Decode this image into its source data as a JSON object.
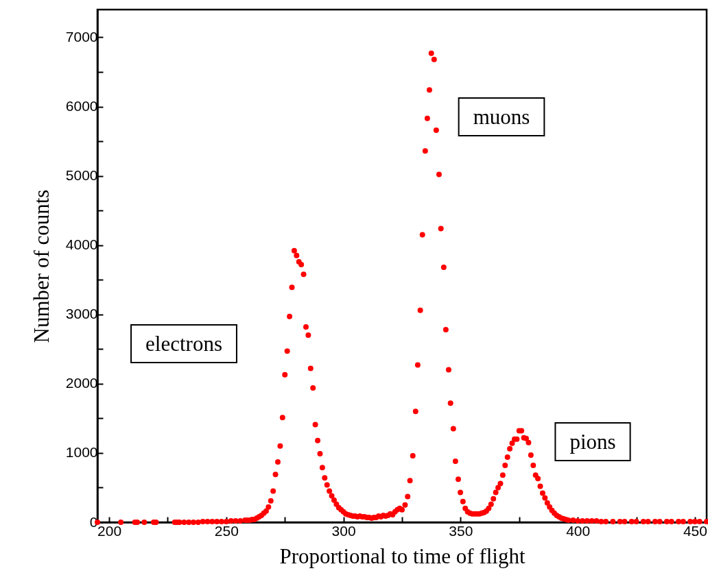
{
  "chart_data": {
    "type": "scatter",
    "xlabel": "Proportional to time of flight",
    "ylabel": "Number of counts",
    "xlim": [
      195,
      455
    ],
    "xticks": [
      200,
      {
        "value": 225,
        "label": null
      },
      250,
      {
        "value": 275,
        "label": null
      },
      300,
      {
        "value": 325,
        "label": null
      },
      350,
      {
        "value": 375,
        "label": null
      },
      400,
      {
        "value": 425,
        "label": null
      },
      450
    ],
    "ylim": [
      0,
      7400
    ],
    "yticks": [
      0,
      {
        "value": 500,
        "label": null
      },
      1000,
      {
        "value": 1500,
        "label": null
      },
      2000,
      {
        "value": 2500,
        "label": null
      },
      3000,
      {
        "value": 3500,
        "label": null
      },
      4000,
      {
        "value": 4500,
        "label": null
      },
      5000,
      {
        "value": 5500,
        "label": null
      },
      6000,
      {
        "value": 6500,
        "label": null
      },
      7000
    ],
    "grid": false,
    "marker": "circle",
    "annotations": [
      "electrons",
      "muons",
      "pions"
    ],
    "series": [
      {
        "color": "#ff0000",
        "x": [
          195,
          205,
          211,
          212,
          215,
          219,
          220,
          228,
          229,
          230,
          232,
          234,
          236,
          238,
          240,
          242,
          244,
          246,
          248,
          250,
          252,
          254,
          256,
          258,
          259,
          260,
          261,
          262,
          263,
          264,
          265,
          266,
          267,
          268,
          269,
          270,
          271,
          272,
          273,
          274,
          275,
          276,
          277,
          278,
          279,
          280,
          281,
          282,
          283,
          284,
          285,
          286,
          287,
          288,
          289,
          290,
          291,
          292,
          293,
          294,
          295,
          296,
          297,
          298,
          299,
          300,
          301,
          302,
          303,
          304,
          305,
          306,
          307,
          308,
          309,
          310,
          311,
          312,
          313,
          314,
          315,
          316,
          317,
          318,
          319,
          320,
          321,
          322,
          323,
          324,
          325,
          326.3,
          327.4,
          328.4,
          329.6,
          330.8,
          331.7,
          332.8,
          333.7,
          334.9,
          335.8,
          336.7,
          337.5,
          338.7,
          339.6,
          340.8,
          341.6,
          342.8,
          343.7,
          344.9,
          345.7,
          346.9,
          347.8,
          349,
          349.9,
          351,
          352,
          353,
          354,
          355,
          356,
          357,
          358,
          359,
          360,
          361,
          362,
          363,
          364,
          365,
          366,
          367,
          368,
          369,
          370,
          371,
          372,
          373,
          374,
          375,
          376,
          377,
          378,
          379,
          380,
          381,
          382,
          383,
          384,
          385,
          386,
          387,
          388,
          389,
          390,
          391,
          392,
          393,
          394,
          395,
          396,
          398,
          400,
          402,
          404,
          406,
          408,
          410,
          412,
          415,
          418,
          420,
          423,
          425,
          428,
          430,
          433,
          435,
          438,
          440,
          443,
          445,
          448,
          450,
          452,
          455
        ],
        "values": [
          0,
          0,
          0,
          0,
          0,
          0,
          0,
          0,
          0,
          0,
          0,
          0,
          0,
          0,
          10,
          10,
          10,
          10,
          10,
          10,
          20,
          20,
          20,
          30,
          30,
          30,
          40,
          40,
          60,
          80,
          100,
          130,
          160,
          220,
          310,
          450,
          690,
          870,
          1100,
          1510,
          2130,
          2470,
          2970,
          3390,
          3920,
          3850,
          3760,
          3720,
          3580,
          2820,
          2700,
          2220,
          1940,
          1410,
          1180,
          990,
          790,
          640,
          540,
          450,
          380,
          320,
          260,
          210,
          180,
          150,
          120,
          110,
          100,
          90,
          90,
          80,
          90,
          80,
          80,
          70,
          70,
          60,
          70,
          70,
          90,
          80,
          100,
          90,
          100,
          120,
          110,
          150,
          180,
          200,
          180,
          250,
          370,
          600,
          960,
          1600,
          2270,
          3060,
          4150,
          5360,
          5830,
          6240,
          6770,
          6680,
          5660,
          5020,
          4240,
          3680,
          2780,
          2200,
          1720,
          1350,
          880,
          620,
          430,
          300,
          200,
          150,
          130,
          120,
          120,
          120,
          120,
          130,
          140,
          160,
          200,
          260,
          340,
          430,
          500,
          560,
          680,
          820,
          940,
          1060,
          1140,
          1200,
          1200,
          1320,
          1320,
          1220,
          1210,
          1150,
          970,
          820,
          680,
          630,
          520,
          420,
          350,
          280,
          220,
          170,
          130,
          100,
          80,
          60,
          50,
          40,
          30,
          30,
          20,
          20,
          20,
          20,
          20,
          10,
          10,
          10,
          10,
          10,
          10,
          10,
          10,
          10,
          10,
          10,
          10,
          10,
          10,
          10,
          10,
          10,
          10,
          10
        ]
      }
    ]
  }
}
